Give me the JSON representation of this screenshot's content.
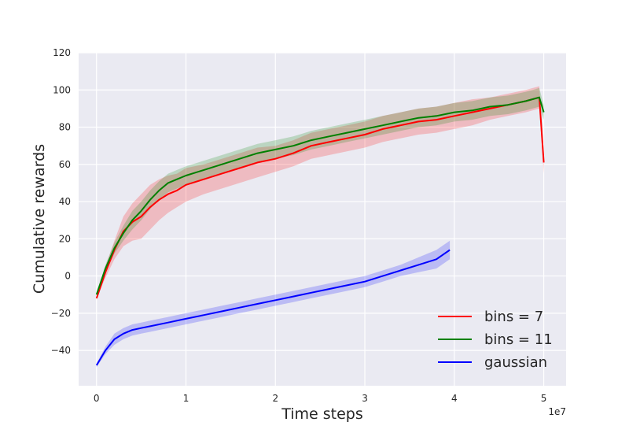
{
  "chart_data": {
    "type": "line",
    "xlabel": "Time steps",
    "ylabel": "Cumulative rewards",
    "x_offset_label": "1e7",
    "xlim": [
      -0.2,
      5.25
    ],
    "ylim": [
      -59,
      120
    ],
    "x_ticks": [
      0,
      1,
      2,
      3,
      4,
      5
    ],
    "y_ticks": [
      -40,
      -20,
      0,
      20,
      40,
      60,
      80,
      100,
      120
    ],
    "x_tick_labels": [
      "0",
      "1",
      "2",
      "3",
      "4",
      "5"
    ],
    "y_tick_labels": [
      "−40",
      "−20",
      "0",
      "20",
      "40",
      "60",
      "80",
      "100",
      "120"
    ],
    "grid": true,
    "legend_position": "lower-right",
    "series": [
      {
        "name": "bins = 7",
        "color": "#ff0000",
        "band_color": "#ff0000",
        "x": [
          0.0,
          0.1,
          0.2,
          0.3,
          0.4,
          0.5,
          0.6,
          0.7,
          0.8,
          0.9,
          1.0,
          1.2,
          1.4,
          1.6,
          1.8,
          2.0,
          2.2,
          2.4,
          2.6,
          2.8,
          3.0,
          3.2,
          3.4,
          3.6,
          3.8,
          4.0,
          4.2,
          4.4,
          4.6,
          4.8,
          4.95,
          5.0
        ],
        "values": [
          -12,
          2,
          14,
          24,
          29,
          32,
          37,
          41,
          44,
          46,
          49,
          52,
          55,
          58,
          61,
          63,
          66,
          70,
          72,
          74,
          76,
          79,
          81,
          83,
          84,
          86,
          88,
          90,
          92,
          94,
          96,
          61
        ],
        "band": [
          0,
          3,
          5,
          8,
          10,
          12,
          12,
          11,
          10,
          9,
          9,
          8,
          8,
          8,
          8,
          7,
          7,
          7,
          7,
          7,
          7,
          7,
          7,
          7,
          7,
          7,
          7,
          6,
          6,
          6,
          6,
          6
        ]
      },
      {
        "name": "bins = 11",
        "color": "#008000",
        "band_color": "#008000",
        "x": [
          0.0,
          0.1,
          0.2,
          0.3,
          0.4,
          0.5,
          0.6,
          0.7,
          0.8,
          0.9,
          1.0,
          1.2,
          1.4,
          1.6,
          1.8,
          2.0,
          2.2,
          2.4,
          2.6,
          2.8,
          3.0,
          3.2,
          3.4,
          3.6,
          3.8,
          4.0,
          4.2,
          4.4,
          4.6,
          4.8,
          4.95,
          5.0
        ],
        "values": [
          -10,
          4,
          15,
          23,
          30,
          35,
          41,
          46,
          50,
          52,
          54,
          57,
          60,
          63,
          66,
          68,
          70,
          73,
          75,
          77,
          79,
          81,
          83,
          85,
          86,
          88,
          89,
          91,
          92,
          94,
          96,
          88
        ],
        "band": [
          0,
          2,
          3,
          4,
          5,
          5,
          5,
          5,
          5,
          5,
          5,
          5,
          5,
          5,
          5,
          5,
          5,
          5,
          5,
          5,
          5,
          5,
          5,
          5,
          5,
          5,
          5,
          5,
          5,
          5,
          5,
          4
        ]
      },
      {
        "name": "gaussian",
        "color": "#0000ff",
        "band_color": "#0000ff",
        "x": [
          0.0,
          0.1,
          0.2,
          0.3,
          0.4,
          0.5,
          0.6,
          0.8,
          1.0,
          1.2,
          1.4,
          1.6,
          1.8,
          2.0,
          2.2,
          2.4,
          2.6,
          2.8,
          3.0,
          3.2,
          3.4,
          3.6,
          3.8,
          3.95
        ],
        "values": [
          -48,
          -40,
          -34,
          -31,
          -29,
          -28,
          -27,
          -25,
          -23,
          -21,
          -19,
          -17,
          -15,
          -13,
          -11,
          -9,
          -7,
          -5,
          -3,
          0,
          3,
          6,
          9,
          14
        ],
        "band": [
          1,
          2,
          3,
          3,
          3,
          3,
          3,
          3,
          3,
          3,
          3,
          3,
          3,
          3,
          3,
          3,
          3,
          3,
          3,
          3,
          3,
          4,
          5,
          5
        ]
      }
    ]
  }
}
